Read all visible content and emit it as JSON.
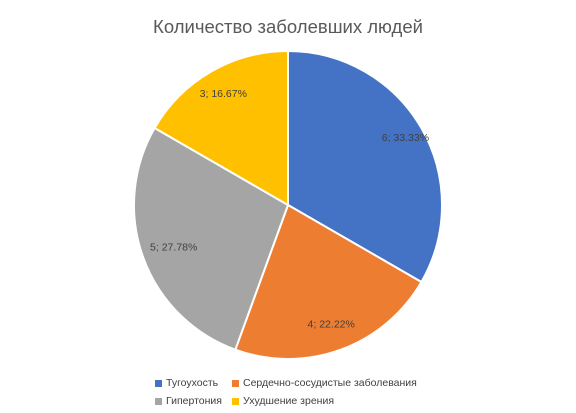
{
  "chart_data": {
    "type": "pie",
    "title": "Количество заболевших людей",
    "categories": [
      "Тугоухость",
      "Сердечно-сосудистые заболевания",
      "Гипертония",
      "Ухудшение зрения"
    ],
    "values": [
      6,
      4,
      5,
      3
    ],
    "data_labels": [
      "6; 33.33%",
      "4; 22.22%",
      "5; 27.78%",
      "3; 16.67%"
    ],
    "colors": [
      "#4472C4",
      "#ED7D31",
      "#A5A5A5",
      "#FFC000"
    ],
    "start_angle": "12 o'clock",
    "direction": "clockwise",
    "legend_position": "bottom"
  }
}
